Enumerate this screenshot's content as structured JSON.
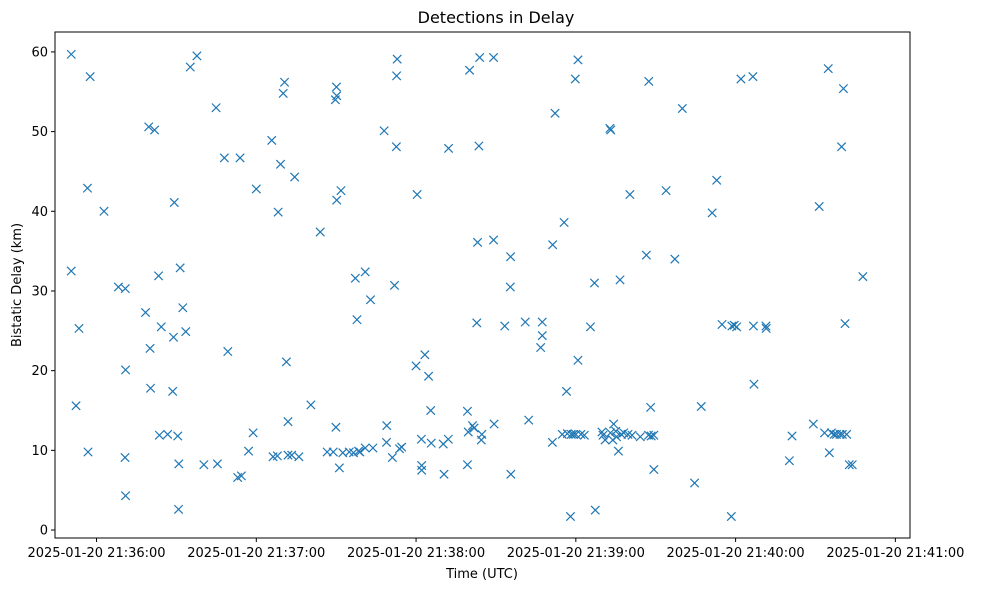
{
  "chart_data": {
    "type": "scatter",
    "title": "Detections in Delay",
    "xlabel": "Time (UTC)",
    "ylabel": "Bistatic Delay (km)",
    "marker": "x",
    "color": "#1f77b4",
    "x_unit": "seconds after 2025-01-20 21:36:00",
    "xlim": [
      -15.6,
      305.5
    ],
    "ylim": [
      -1,
      62.5
    ],
    "xticks": [
      {
        "value": 0,
        "label": "2025-01-20 21:36:00"
      },
      {
        "value": 60,
        "label": "2025-01-20 21:37:00"
      },
      {
        "value": 120,
        "label": "2025-01-20 21:38:00"
      },
      {
        "value": 180,
        "label": "2025-01-20 21:39:00"
      },
      {
        "value": 240,
        "label": "2025-01-20 21:40:00"
      },
      {
        "value": 300,
        "label": "2025-01-20 21:41:00"
      }
    ],
    "yticks": [
      0,
      10,
      20,
      30,
      40,
      50,
      60
    ],
    "points": [
      [
        -9.5,
        59.7
      ],
      [
        -9.5,
        32.5
      ],
      [
        -7.7,
        15.6
      ],
      [
        -6.6,
        25.3
      ],
      [
        -3.2,
        9.8
      ],
      [
        -2.4,
        56.9
      ],
      [
        -3.4,
        42.9
      ],
      [
        2.8,
        40.0
      ],
      [
        8.2,
        30.5
      ],
      [
        10.8,
        30.3
      ],
      [
        10.9,
        20.1
      ],
      [
        10.7,
        9.1
      ],
      [
        10.9,
        4.3
      ],
      [
        18.4,
        27.3
      ],
      [
        19.6,
        50.6
      ],
      [
        21.8,
        50.2
      ],
      [
        20.1,
        22.8
      ],
      [
        20.3,
        17.8
      ],
      [
        23.3,
        31.9
      ],
      [
        24.3,
        25.5
      ],
      [
        23.6,
        11.9
      ],
      [
        26.7,
        12.0
      ],
      [
        28.6,
        17.4
      ],
      [
        29.2,
        41.1
      ],
      [
        28.9,
        24.2
      ],
      [
        30.5,
        11.8
      ],
      [
        30.9,
        8.3
      ],
      [
        30.8,
        2.6
      ],
      [
        31.4,
        32.9
      ],
      [
        32.4,
        27.9
      ],
      [
        33.5,
        24.9
      ],
      [
        35.2,
        58.1
      ],
      [
        37.7,
        59.5
      ],
      [
        40.3,
        8.2
      ],
      [
        45.4,
        8.3
      ],
      [
        44.9,
        53.0
      ],
      [
        48.0,
        46.7
      ],
      [
        49.3,
        22.4
      ],
      [
        53.9,
        46.7
      ],
      [
        53.0,
        6.6
      ],
      [
        54.4,
        6.8
      ],
      [
        57.1,
        9.9
      ],
      [
        58.8,
        12.2
      ],
      [
        60.0,
        42.8
      ],
      [
        65.8,
        48.9
      ],
      [
        66.3,
        9.2
      ],
      [
        68.2,
        39.9
      ],
      [
        69.1,
        45.9
      ],
      [
        67.9,
        9.3
      ],
      [
        70.1,
        54.8
      ],
      [
        70.6,
        56.2
      ],
      [
        71.3,
        21.1
      ],
      [
        71.9,
        13.6
      ],
      [
        71.9,
        9.4
      ],
      [
        73.3,
        9.4
      ],
      [
        74.4,
        44.3
      ],
      [
        76.0,
        9.2
      ],
      [
        80.5,
        15.7
      ],
      [
        84.0,
        37.4
      ],
      [
        86.6,
        9.8
      ],
      [
        88.9,
        9.8
      ],
      [
        89.7,
        54.0
      ],
      [
        90.2,
        54.5
      ],
      [
        90.1,
        55.6
      ],
      [
        90.2,
        41.4
      ],
      [
        89.9,
        12.9
      ],
      [
        91.2,
        7.8
      ],
      [
        91.8,
        42.6
      ],
      [
        92.5,
        9.7
      ],
      [
        94.9,
        9.8
      ],
      [
        96.5,
        9.7
      ],
      [
        97.2,
        31.6
      ],
      [
        97.8,
        26.4
      ],
      [
        98.4,
        9.9
      ],
      [
        98.9,
        9.8
      ],
      [
        100.9,
        32.4
      ],
      [
        100.9,
        10.3
      ],
      [
        102.9,
        28.9
      ],
      [
        103.8,
        10.3
      ],
      [
        108.0,
        50.1
      ],
      [
        109.0,
        13.1
      ],
      [
        108.9,
        11.0
      ],
      [
        111.1,
        9.1
      ],
      [
        111.9,
        30.7
      ],
      [
        112.6,
        48.1
      ],
      [
        112.9,
        59.1
      ],
      [
        112.7,
        57.0
      ],
      [
        114.6,
        10.4
      ],
      [
        113.8,
        10.2
      ],
      [
        120.0,
        20.6
      ],
      [
        120.4,
        42.1
      ],
      [
        122.0,
        11.4
      ],
      [
        122.1,
        8.1
      ],
      [
        122.1,
        7.5
      ],
      [
        123.3,
        22.0
      ],
      [
        124.7,
        19.3
      ],
      [
        125.5,
        15.0
      ],
      [
        125.7,
        10.9
      ],
      [
        130.2,
        10.8
      ],
      [
        130.5,
        7.0
      ],
      [
        132.1,
        11.4
      ],
      [
        132.2,
        47.9
      ],
      [
        139.3,
        14.9
      ],
      [
        139.3,
        8.2
      ],
      [
        139.6,
        12.3
      ],
      [
        140.1,
        57.7
      ],
      [
        141.2,
        13.1
      ],
      [
        141.8,
        12.8
      ],
      [
        142.8,
        26.0
      ],
      [
        143.1,
        36.1
      ],
      [
        143.6,
        48.2
      ],
      [
        143.9,
        59.3
      ],
      [
        144.5,
        11.3
      ],
      [
        144.7,
        12.0
      ],
      [
        149.1,
        59.3
      ],
      [
        149.1,
        36.4
      ],
      [
        149.3,
        13.3
      ],
      [
        153.3,
        25.6
      ],
      [
        155.6,
        7.0
      ],
      [
        155.4,
        30.5
      ],
      [
        155.5,
        34.3
      ],
      [
        161.0,
        26.1
      ],
      [
        162.3,
        13.8
      ],
      [
        166.8,
        22.9
      ],
      [
        167.4,
        26.1
      ],
      [
        167.4,
        24.4
      ],
      [
        171.3,
        35.8
      ],
      [
        171.2,
        11.0
      ],
      [
        172.2,
        52.3
      ],
      [
        174.9,
        12.0
      ],
      [
        175.6,
        38.6
      ],
      [
        176.5,
        17.4
      ],
      [
        176.8,
        12.1
      ],
      [
        178.0,
        1.7
      ],
      [
        178.3,
        12.0
      ],
      [
        179.1,
        12.0
      ],
      [
        179.8,
        56.6
      ],
      [
        180.0,
        12.0
      ],
      [
        180.8,
        21.3
      ],
      [
        180.8,
        59.0
      ],
      [
        181.9,
        12.0
      ],
      [
        183.2,
        11.9
      ],
      [
        185.5,
        25.5
      ],
      [
        187.0,
        31.0
      ],
      [
        187.3,
        2.5
      ],
      [
        189.8,
        12.3
      ],
      [
        190.2,
        11.9
      ],
      [
        191.0,
        11.3
      ],
      [
        192.8,
        50.4
      ],
      [
        193.0,
        12.2
      ],
      [
        193.1,
        50.2
      ],
      [
        193.9,
        11.3
      ],
      [
        194.2,
        13.3
      ],
      [
        195.0,
        12.4
      ],
      [
        195.3,
        11.7
      ],
      [
        196.0,
        9.9
      ],
      [
        196.6,
        31.4
      ],
      [
        197.1,
        12.0
      ],
      [
        198.0,
        12.2
      ],
      [
        199.6,
        12.0
      ],
      [
        200.3,
        42.1
      ],
      [
        201.1,
        11.9
      ],
      [
        204.2,
        11.7
      ],
      [
        206.5,
        34.5
      ],
      [
        207.3,
        11.9
      ],
      [
        207.4,
        56.3
      ],
      [
        208.1,
        15.4
      ],
      [
        208.3,
        11.8
      ],
      [
        209.3,
        11.9
      ],
      [
        209.3,
        7.6
      ],
      [
        213.9,
        42.6
      ],
      [
        217.2,
        34.0
      ],
      [
        220.0,
        52.9
      ],
      [
        224.6,
        5.9
      ],
      [
        227.1,
        15.5
      ],
      [
        231.2,
        39.8
      ],
      [
        232.9,
        43.9
      ],
      [
        234.9,
        25.8
      ],
      [
        238.4,
        1.7
      ],
      [
        238.6,
        25.6
      ],
      [
        239.5,
        25.7
      ],
      [
        240.4,
        25.5
      ],
      [
        242.0,
        56.6
      ],
      [
        246.5,
        56.9
      ],
      [
        246.7,
        25.6
      ],
      [
        246.9,
        18.3
      ],
      [
        251.4,
        25.6
      ],
      [
        251.5,
        25.3
      ],
      [
        260.2,
        8.7
      ],
      [
        261.2,
        11.8
      ],
      [
        269.2,
        13.3
      ],
      [
        271.4,
        40.6
      ],
      [
        273.4,
        12.2
      ],
      [
        274.8,
        57.9
      ],
      [
        275.2,
        9.7
      ],
      [
        276.0,
        12.2
      ],
      [
        277.0,
        12.0
      ],
      [
        277.9,
        12.0
      ],
      [
        279.2,
        12.0
      ],
      [
        279.8,
        48.1
      ],
      [
        280.1,
        12.0
      ],
      [
        280.5,
        55.4
      ],
      [
        281.1,
        25.9
      ],
      [
        281.7,
        12.0
      ],
      [
        282.7,
        8.2
      ],
      [
        283.8,
        8.2
      ],
      [
        287.8,
        31.8
      ]
    ]
  }
}
